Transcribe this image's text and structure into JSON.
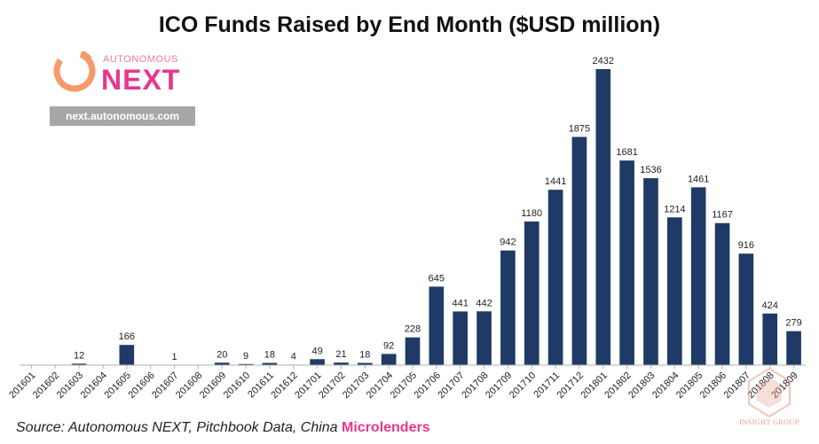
{
  "chart_data": {
    "type": "bar",
    "title": "ICO Funds Raised by End Month ($USD million)",
    "xlabel": "",
    "ylabel": "",
    "ylim": [
      0,
      2500
    ],
    "grid": false,
    "legend": "none",
    "categories": [
      "201601",
      "201602",
      "201603",
      "201604",
      "201605",
      "201606",
      "201607",
      "201608",
      "201609",
      "201610",
      "201611",
      "201612",
      "201701",
      "201702",
      "201703",
      "201704",
      "201705",
      "201706",
      "201707",
      "201708",
      "201709",
      "201710",
      "201711",
      "201712",
      "201801",
      "201802",
      "201803",
      "201804",
      "201805",
      "201806",
      "201807",
      "201808",
      "201809"
    ],
    "values": [
      0,
      0,
      12,
      0,
      166,
      0,
      1,
      0,
      20,
      9,
      18,
      4,
      49,
      21,
      18,
      92,
      228,
      645,
      441,
      442,
      942,
      1180,
      1441,
      1875,
      2432,
      1681,
      1536,
      1214,
      1461,
      1167,
      916,
      424,
      279
    ],
    "data_labels": [
      "",
      "",
      "12",
      "",
      "166",
      "",
      "1",
      "",
      "20",
      "9",
      "18",
      "4",
      "49",
      "21",
      "18",
      "92",
      "228",
      "645",
      "441",
      "442",
      "942",
      "1180",
      "1441",
      "1875",
      "2432",
      "1681",
      "1536",
      "1214",
      "1461",
      "1167",
      "916",
      "424",
      "279"
    ],
    "bar_color": "#1f3a66"
  },
  "logo": {
    "top_text": "AUTONOMOUS",
    "main_text": "NEXT",
    "url": "next.autonomous.com"
  },
  "source": {
    "prefix": "Source: Autonomous NEXT, Pitchbook Data, China ",
    "accent": "Microlenders"
  },
  "watermark": {
    "text": "INSIGHT GROUP"
  }
}
